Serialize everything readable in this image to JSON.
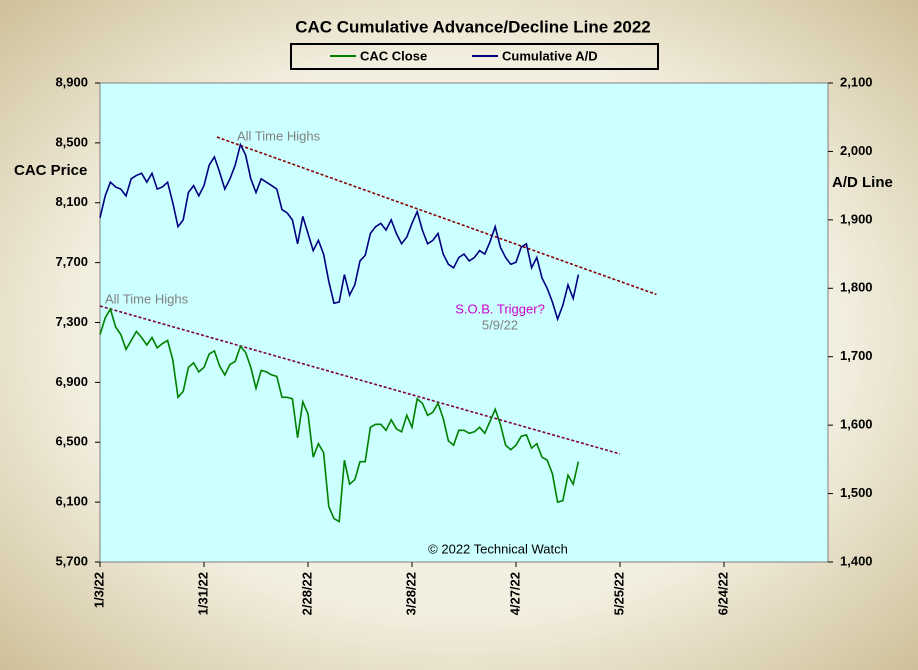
{
  "chart_data": {
    "type": "line",
    "title": "CAC Cumulative  Advance/Decline Line 2022",
    "ylabel": "CAC Price",
    "y2label": "A/D Line",
    "categories": [
      "1/3/22",
      null,
      null,
      null,
      null,
      null,
      null,
      null,
      null,
      null,
      null,
      null,
      null,
      null,
      null,
      null,
      null,
      null,
      null,
      null,
      "1/31/22",
      null,
      null,
      null,
      null,
      null,
      null,
      null,
      null,
      null,
      null,
      null,
      null,
      null,
      null,
      null,
      null,
      null,
      null,
      null,
      "2/28/22",
      null,
      null,
      null,
      null,
      null,
      null,
      null,
      null,
      null,
      null,
      null,
      null,
      null,
      null,
      null,
      null,
      null,
      null,
      null,
      "3/28/22",
      null,
      null,
      null,
      null,
      null,
      null,
      null,
      null,
      null,
      null,
      null,
      null,
      null,
      null,
      null,
      null,
      null,
      null,
      null,
      "4/27/22",
      null,
      null,
      null,
      null,
      null,
      null,
      null,
      null,
      null,
      null,
      null,
      null,
      null,
      null,
      null,
      null,
      null,
      null,
      null,
      "5/25/22",
      null,
      null,
      null,
      null,
      null,
      null,
      null,
      null,
      null,
      null,
      null,
      null,
      null,
      null,
      null,
      null,
      null,
      null,
      null,
      "6/24/22",
      null,
      null,
      null,
      null,
      null,
      null,
      null,
      null,
      null,
      null,
      null,
      null,
      null,
      null,
      null,
      null,
      null,
      null,
      null,
      null
    ],
    "series": [
      {
        "name": "CAC Close",
        "color": "#008000",
        "axis": "y",
        "values": [
          7220,
          7330,
          7390,
          7270,
          7220,
          7120,
          7180,
          7240,
          7200,
          7150,
          7200,
          7130,
          7160,
          7180,
          7050,
          6800,
          6840,
          7000,
          7030,
          6970,
          7000,
          7090,
          7110,
          7010,
          6950,
          7020,
          7040,
          7140,
          7100,
          7000,
          6860,
          6980,
          6970,
          6950,
          6940,
          6800,
          6800,
          6790,
          6530,
          6770,
          6690,
          6400,
          6490,
          6430,
          6070,
          5990,
          5970,
          6380,
          6220,
          6250,
          6370,
          6370,
          6600,
          6620,
          6620,
          6580,
          6650,
          6590,
          6570,
          6680,
          6600,
          6790,
          6760,
          6680,
          6700,
          6760,
          6660,
          6510,
          6480,
          6580,
          6580,
          6560,
          6570,
          6600,
          6560,
          6640,
          6720,
          6620,
          6480,
          6450,
          6480,
          6540,
          6550,
          6460,
          6490,
          6400,
          6380,
          6290,
          6100,
          6110,
          6280,
          6220,
          6370,
          null,
          null,
          null,
          null,
          null,
          null,
          null,
          null,
          null,
          null,
          null,
          null,
          null,
          null,
          null,
          null,
          null,
          null,
          null,
          null,
          null,
          null,
          null,
          null,
          null,
          null,
          null,
          null,
          null,
          null,
          null,
          null,
          null,
          null,
          null,
          null,
          null,
          null,
          null,
          null,
          null,
          null,
          null,
          null,
          null,
          null,
          null,
          null
        ]
      },
      {
        "name": "Cumulative A/D",
        "color": "#000080",
        "axis": "y2",
        "values": [
          1903,
          1935,
          1955,
          1948,
          1945,
          1935,
          1960,
          1965,
          1968,
          1955,
          1968,
          1945,
          1948,
          1955,
          1925,
          1890,
          1900,
          1940,
          1950,
          1935,
          1950,
          1980,
          1992,
          1970,
          1945,
          1960,
          1980,
          2010,
          1995,
          1960,
          1940,
          1960,
          1955,
          1950,
          1945,
          1915,
          1910,
          1900,
          1865,
          1905,
          1880,
          1855,
          1870,
          1850,
          1810,
          1778,
          1780,
          1820,
          1790,
          1805,
          1840,
          1848,
          1880,
          1890,
          1895,
          1885,
          1900,
          1880,
          1865,
          1875,
          1895,
          1912,
          1885,
          1865,
          1870,
          1880,
          1850,
          1835,
          1830,
          1845,
          1850,
          1840,
          1845,
          1855,
          1850,
          1868,
          1890,
          1860,
          1845,
          1835,
          1838,
          1860,
          1865,
          1830,
          1845,
          1815,
          1800,
          1780,
          1755,
          1775,
          1805,
          1785,
          1820,
          null,
          null,
          null,
          null,
          null,
          null,
          null,
          null,
          null,
          null,
          null,
          null,
          null,
          null,
          null,
          null,
          null,
          null,
          null,
          null,
          null,
          null,
          null,
          null,
          null,
          null,
          null,
          null,
          null,
          null,
          null,
          null,
          null,
          null,
          null,
          null,
          null,
          null,
          null,
          null,
          null,
          null,
          null,
          null,
          null,
          null,
          null,
          null
        ]
      }
    ],
    "trend_lines": [
      {
        "axis": "y2",
        "color": "#8b0000",
        "start": {
          "index": 22.5,
          "value": 2021
        },
        "end": {
          "index": 107,
          "value": 1791
        }
      },
      {
        "axis": "y",
        "color": "#800040",
        "start": {
          "index": 0,
          "value": 7410
        },
        "end": {
          "index": 100,
          "value": 6422
        }
      }
    ],
    "annotations": [
      {
        "text": "All Time Highs",
        "color": "#808080"
      },
      {
        "text": "All Time Highs",
        "color": "#808080"
      },
      {
        "text": "S.O.B. Trigger?",
        "color": "#cc00cc"
      },
      {
        "text": "5/9/22",
        "color": "#808080"
      },
      {
        "text": "© 2022 Technical Watch",
        "color": "#000000"
      }
    ],
    "ylim": [
      5700,
      8900
    ],
    "yticks": [
      {
        "value": 5700,
        "label": "5,700"
      },
      {
        "value": 6100,
        "label": "6,100"
      },
      {
        "value": 6500,
        "label": "6,500"
      },
      {
        "value": 6900,
        "label": "6,900"
      },
      {
        "value": 7300,
        "label": "7,300"
      },
      {
        "value": 7700,
        "label": "7,700"
      },
      {
        "value": 8100,
        "label": "8,100"
      },
      {
        "value": 8500,
        "label": "8,500"
      },
      {
        "value": 8900,
        "label": "8,900"
      }
    ],
    "y2lim": [
      1400,
      2100
    ],
    "y2ticks": [
      {
        "value": 1400,
        "label": "1,400"
      },
      {
        "value": 1500,
        "label": "1,500"
      },
      {
        "value": 1600,
        "label": "1,600"
      },
      {
        "value": 1700,
        "label": "1,700"
      },
      {
        "value": 1800,
        "label": "1,800"
      },
      {
        "value": 1900,
        "label": "1,900"
      },
      {
        "value": 2000,
        "label": "2,000"
      },
      {
        "value": 2100,
        "label": "2,100"
      }
    ],
    "plot_background": "#ccffff",
    "legend": "top"
  }
}
